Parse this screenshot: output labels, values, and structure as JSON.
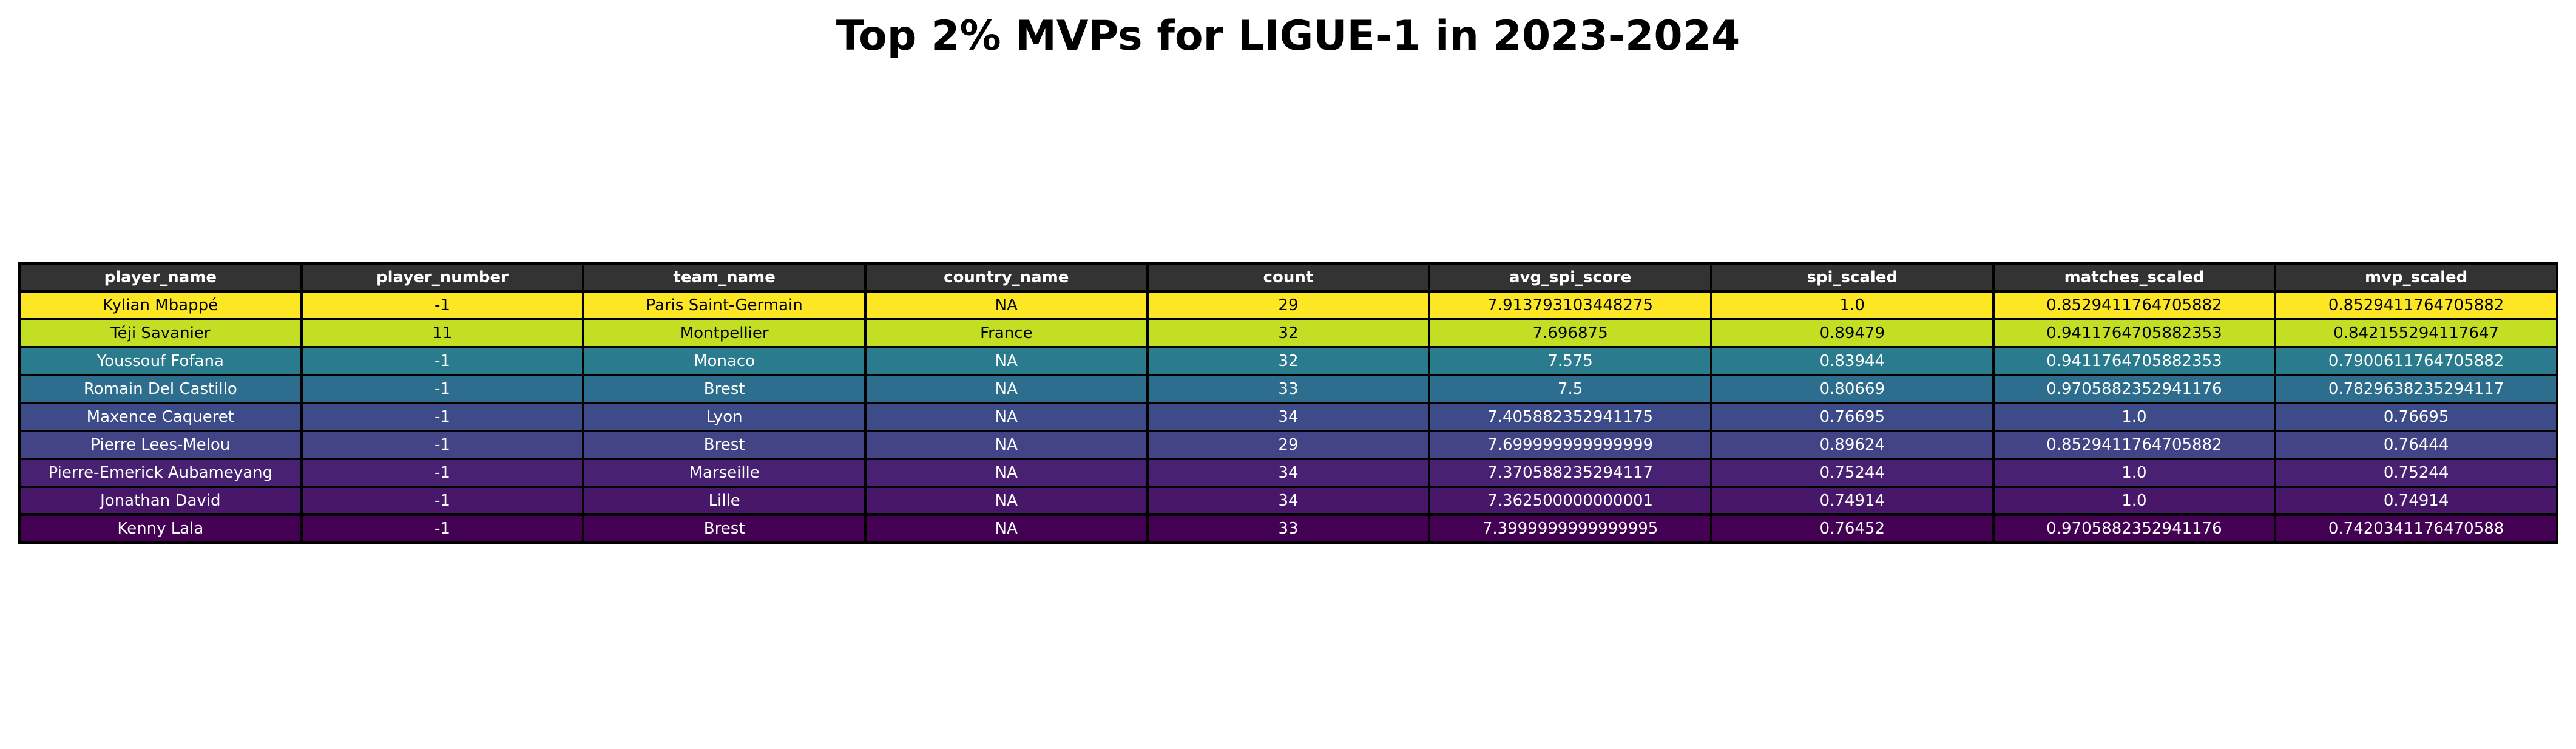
{
  "chart_data": {
    "type": "table",
    "title": "Top 2% MVPs for LIGUE-1 in 2023-2024",
    "columns": [
      "player_name",
      "player_number",
      "team_name",
      "country_name",
      "count",
      "avg_spi_score",
      "spi_scaled",
      "matches_scaled",
      "mvp_scaled"
    ],
    "rows": [
      {
        "cells": [
          "Kylian Mbappé",
          "-1",
          "Paris Saint-Germain",
          "NA",
          "29",
          "7.913793103448275",
          "1.0",
          "0.8529411764705882",
          "0.8529411764705882"
        ],
        "bg": "#fde725",
        "fg": "#000000"
      },
      {
        "cells": [
          "Téji Savanier",
          "11",
          "Montpellier",
          "France",
          "32",
          "7.696875",
          "0.89479",
          "0.9411764705882353",
          "0.842155294117647"
        ],
        "bg": "#c2df23",
        "fg": "#000000"
      },
      {
        "cells": [
          "Youssouf Fofana",
          "-1",
          "Monaco",
          "NA",
          "32",
          "7.575",
          "0.83944",
          "0.9411764705882353",
          "0.7900611764705882"
        ],
        "bg": "#2a7b8e",
        "fg": "#ffffff"
      },
      {
        "cells": [
          "Romain Del Castillo",
          "-1",
          "Brest",
          "NA",
          "33",
          "7.5",
          "0.80669",
          "0.9705882352941176",
          "0.7829638235294117"
        ],
        "bg": "#2d6e8e",
        "fg": "#ffffff"
      },
      {
        "cells": [
          "Maxence Caqueret",
          "-1",
          "Lyon",
          "NA",
          "34",
          "7.405882352941175",
          "0.76695",
          "1.0",
          "0.76695"
        ],
        "bg": "#3d4b89",
        "fg": "#ffffff"
      },
      {
        "cells": [
          "Pierre Lees-Melou",
          "-1",
          "Brest",
          "NA",
          "29",
          "7.699999999999999",
          "0.89624",
          "0.8529411764705882",
          "0.76444"
        ],
        "bg": "#424486",
        "fg": "#ffffff"
      },
      {
        "cells": [
          "Pierre-Emerick Aubameyang",
          "-1",
          "Marseille",
          "NA",
          "34",
          "7.370588235294117",
          "0.75244",
          "1.0",
          "0.75244"
        ],
        "bg": "#482173",
        "fg": "#ffffff"
      },
      {
        "cells": [
          "Jonathan David",
          "-1",
          "Lille",
          "NA",
          "34",
          "7.362500000000001",
          "0.74914",
          "1.0",
          "0.74914"
        ],
        "bg": "#48176a",
        "fg": "#ffffff"
      },
      {
        "cells": [
          "Kenny Lala",
          "-1",
          "Brest",
          "NA",
          "33",
          "7.3999999999999995",
          "0.76452",
          "0.9705882352941176",
          "0.7420341176470588"
        ],
        "bg": "#440154",
        "fg": "#ffffff"
      }
    ]
  }
}
